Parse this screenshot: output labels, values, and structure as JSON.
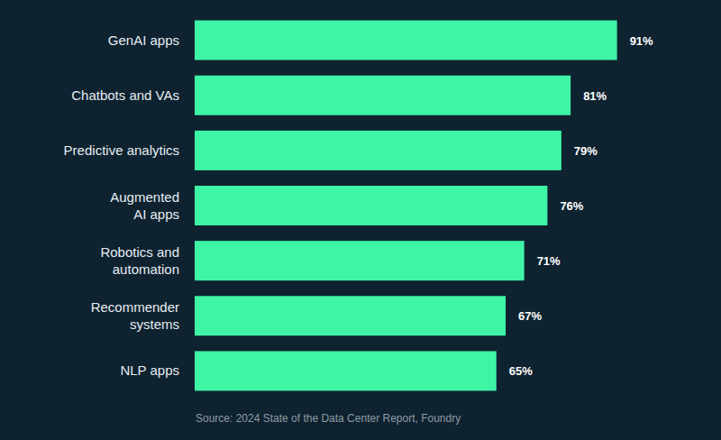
{
  "chart_data": {
    "type": "bar",
    "orientation": "horizontal",
    "categories": [
      "GenAI apps",
      "Chatbots and VAs",
      "Predictive analytics",
      "Augmented\nAI apps",
      "Robotics and\nautomation",
      "Recommender\nsystems",
      "NLP apps"
    ],
    "values": [
      91,
      81,
      79,
      76,
      71,
      67,
      65
    ],
    "value_labels": [
      "91%",
      "81%",
      "79%",
      "76%",
      "71%",
      "67%",
      "65%"
    ],
    "color": "#3ef5a6",
    "xlim": [
      0,
      100
    ],
    "data_labels": true,
    "tick_labels": "y",
    "grid": false,
    "source": "Source: 2024 State of the Data Center Report, Foundry"
  }
}
